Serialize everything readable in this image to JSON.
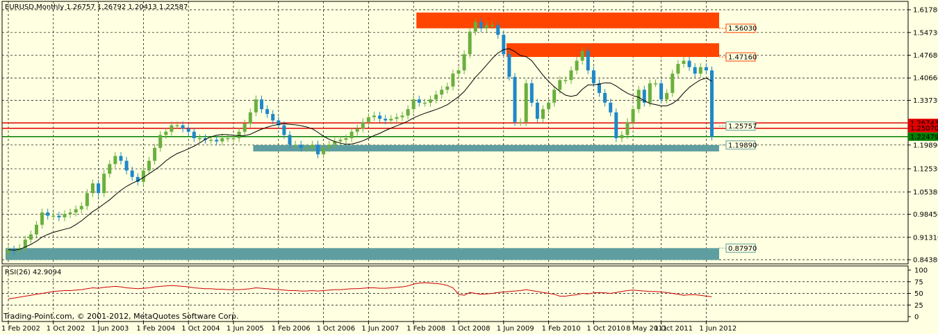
{
  "header": {
    "symbol_tf": "EURUSD,Monthly",
    "ohlc": "1.26757 1.26792 1.20413 1.22587"
  },
  "copyright": "Trading-Point.com, © 2001-2012, MetaQuotes Software Corp.",
  "colors": {
    "background": "#FFFFE1",
    "grid": "#000000",
    "bull": "#6AAF3F",
    "bear": "#1E88C8",
    "ma_line": "#000000",
    "supply_zone": "#FF4500",
    "demand_zone": "#5F9EA0",
    "resistance_line": "#E00000",
    "support_line": "#008000",
    "rsi_line": "#CC0000"
  },
  "chart_data": {
    "type": "candlestick",
    "symbol": "EURUSD",
    "timeframe": "Monthly",
    "y_ticks": [
      "1.61780",
      "1.54730",
      "1.47680",
      "1.40660",
      "1.33730",
      "1.26743",
      "1.25070",
      "1.22479",
      "1.19890",
      "1.12530",
      "1.05380",
      "0.98450",
      "0.91310",
      "0.84380"
    ],
    "axis_y_ticks": [
      1.6178,
      1.5473,
      1.4768,
      1.4066,
      1.3373,
      1.1989,
      1.1253,
      1.0538,
      0.9845,
      0.9131,
      0.8438
    ],
    "y_range": [
      0.8438,
      1.6178
    ],
    "x_ticks": [
      "1 Feb 2002",
      "1 Oct 2002",
      "1 Jun 2003",
      "1 Feb 2004",
      "1 Oct 2004",
      "1 Jun 2005",
      "1 Feb 2006",
      "1 Oct 2006",
      "1 Jun 2007",
      "1 Feb 2008",
      "1 Oct 2008",
      "1 Jun 2009",
      "1 Feb 2010",
      "1 Oct 2010",
      "8 May 2011",
      "1 Oct 2011",
      "1 Jun 2012"
    ],
    "x_tick_months": [
      0,
      8,
      16,
      24,
      32,
      40,
      48,
      56,
      64,
      72,
      80,
      88,
      96,
      104,
      111,
      116,
      124
    ],
    "month_count": 126,
    "closes": [
      0.875,
      0.872,
      0.88,
      0.906,
      0.922,
      0.952,
      0.99,
      0.98,
      0.98,
      0.975,
      0.985,
      0.99,
      1.0,
      1.01,
      1.05,
      1.08,
      1.05,
      1.11,
      1.14,
      1.165,
      1.15,
      1.12,
      1.1,
      1.085,
      1.12,
      1.15,
      1.19,
      1.23,
      1.24,
      1.26,
      1.26,
      1.25,
      1.24,
      1.22,
      1.22,
      1.215,
      1.215,
      1.21,
      1.22,
      1.22,
      1.22,
      1.24,
      1.265,
      1.3,
      1.34,
      1.31,
      1.295,
      1.275,
      1.26,
      1.23,
      1.2,
      1.2,
      1.19,
      1.19,
      1.2,
      1.17,
      1.19,
      1.2,
      1.21,
      1.215,
      1.22,
      1.24,
      1.25,
      1.27,
      1.285,
      1.29,
      1.28,
      1.275,
      1.28,
      1.285,
      1.29,
      1.31,
      1.34,
      1.33,
      1.33,
      1.34,
      1.355,
      1.37,
      1.38,
      1.42,
      1.43,
      1.48,
      1.55,
      1.58,
      1.56,
      1.57,
      1.57,
      1.54,
      1.48,
      1.41,
      1.27,
      1.27,
      1.39,
      1.33,
      1.28,
      1.31,
      1.33,
      1.37,
      1.4,
      1.4,
      1.43,
      1.46,
      1.49,
      1.43,
      1.39,
      1.36,
      1.33,
      1.3,
      1.22,
      1.23,
      1.27,
      1.31,
      1.37,
      1.33,
      1.39,
      1.39,
      1.34,
      1.36,
      1.42,
      1.45,
      1.46,
      1.44,
      1.42,
      1.44,
      1.43,
      1.225
    ],
    "moving_average": {
      "label": "MA",
      "note": "single black moving average line"
    },
    "horizontal_lines": [
      {
        "label": "1.26743",
        "value": 1.26743,
        "color": "#E00000"
      },
      {
        "label": "1.25070",
        "value": 1.2507,
        "color": "#E00000"
      },
      {
        "label": "1.22479",
        "value": 1.22479,
        "color": "#008000"
      }
    ],
    "zones": [
      {
        "label": "1.56030",
        "value": 1.5603,
        "low": 1.5603,
        "high": 1.609,
        "start_month": 73,
        "color": "#FF4500"
      },
      {
        "label": "1.47160",
        "value": 1.4716,
        "low": 1.4716,
        "high": 1.514,
        "start_month": 89,
        "color": "#FF4500"
      },
      {
        "label": "1.25757",
        "value": 1.25757,
        "low": 1.25757,
        "high": 1.25757,
        "start_month": 124,
        "color": "#5F9EA0"
      },
      {
        "label": "1.19890",
        "value": 1.1989,
        "low": 1.179,
        "high": 1.1989,
        "start_month": 44,
        "color": "#5F9EA0"
      },
      {
        "label": "0.87970",
        "value": 0.8797,
        "low": 0.843,
        "high": 0.8797,
        "start_month": 0,
        "color": "#5F9EA0"
      }
    ],
    "rsi": {
      "label": "RSI(26) 42.9094",
      "period": 26,
      "value": 42.9094,
      "y_ticks": [
        "100",
        "75",
        "50",
        "25",
        "0"
      ],
      "y_range": [
        0,
        100
      ],
      "values": [
        38,
        40,
        42,
        44,
        46,
        48,
        50,
        52,
        54,
        55,
        56,
        56,
        57,
        58,
        60,
        62,
        61,
        63,
        64,
        65,
        64,
        62,
        61,
        60,
        61,
        62,
        64,
        65,
        66,
        67,
        66,
        65,
        64,
        62,
        61,
        60,
        60,
        59,
        59,
        58,
        58,
        58,
        59,
        60,
        62,
        61,
        60,
        59,
        58,
        57,
        56,
        56,
        55,
        55,
        56,
        55,
        56,
        57,
        58,
        58,
        59,
        60,
        60,
        61,
        62,
        62,
        61,
        61,
        62,
        63,
        64,
        66,
        70,
        72,
        73,
        72,
        71,
        70,
        67,
        62,
        48,
        46,
        52,
        50,
        48,
        49,
        50,
        52,
        53,
        54,
        55,
        56,
        58,
        56,
        54,
        52,
        50,
        48,
        44,
        44,
        46,
        47,
        50,
        49,
        51,
        52,
        51,
        50,
        52,
        54,
        56,
        57,
        56,
        55,
        54,
        54,
        53,
        52,
        50,
        48,
        46,
        47,
        47,
        46,
        44,
        43
      ]
    }
  }
}
